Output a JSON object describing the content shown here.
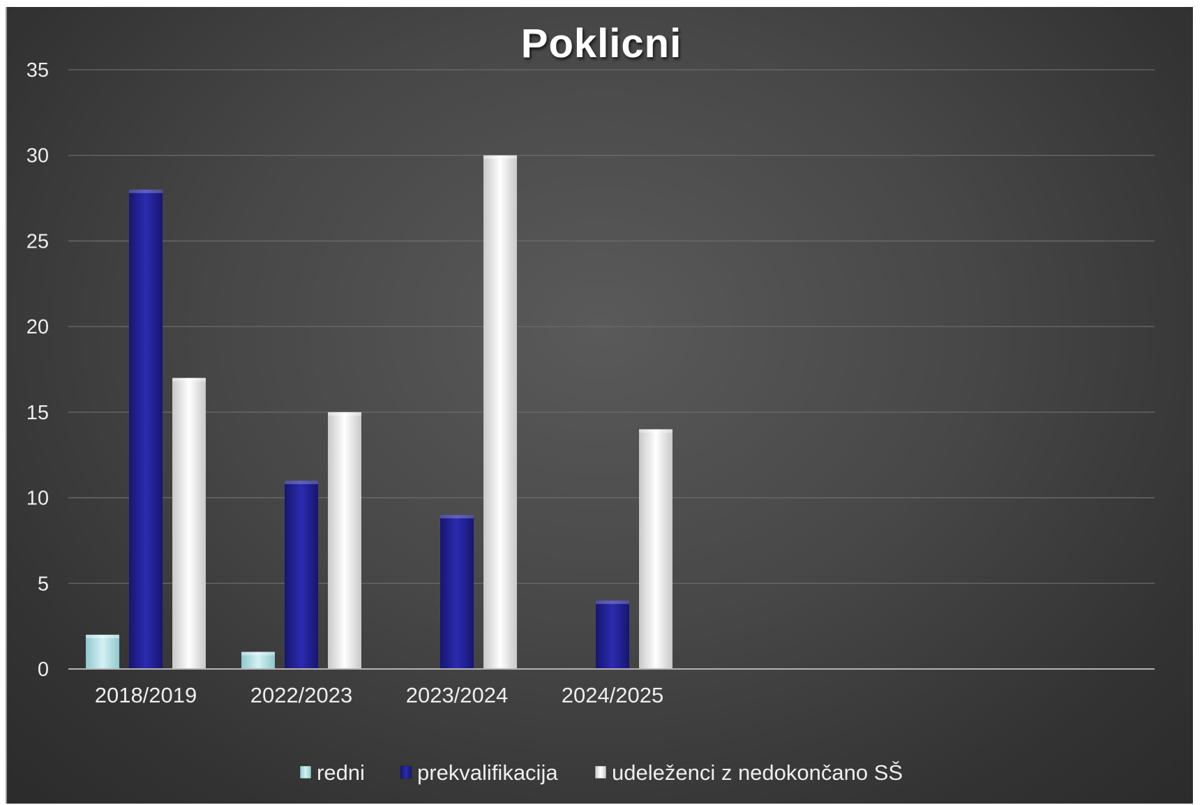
{
  "chart_data": {
    "type": "bar",
    "title": "Poklicni",
    "categories": [
      "2018/2019",
      "2022/2023",
      "2023/2024",
      "2024/2025"
    ],
    "series": [
      {
        "name": "redni",
        "values": [
          2,
          1,
          0,
          0
        ],
        "color": "#bfe7ea"
      },
      {
        "name": "prekvalifikacija",
        "values": [
          28,
          11,
          9,
          4
        ],
        "color": "#2a2aa8"
      },
      {
        "name": "udeleženci z nedokončano SŠ",
        "values": [
          17,
          15,
          30,
          14
        ],
        "color": "#f2f2f2"
      }
    ],
    "ylim": [
      0,
      35
    ],
    "yticks": [
      0,
      5,
      10,
      15,
      20,
      25,
      30,
      35
    ],
    "grid": true,
    "legend": "bottom-center"
  }
}
